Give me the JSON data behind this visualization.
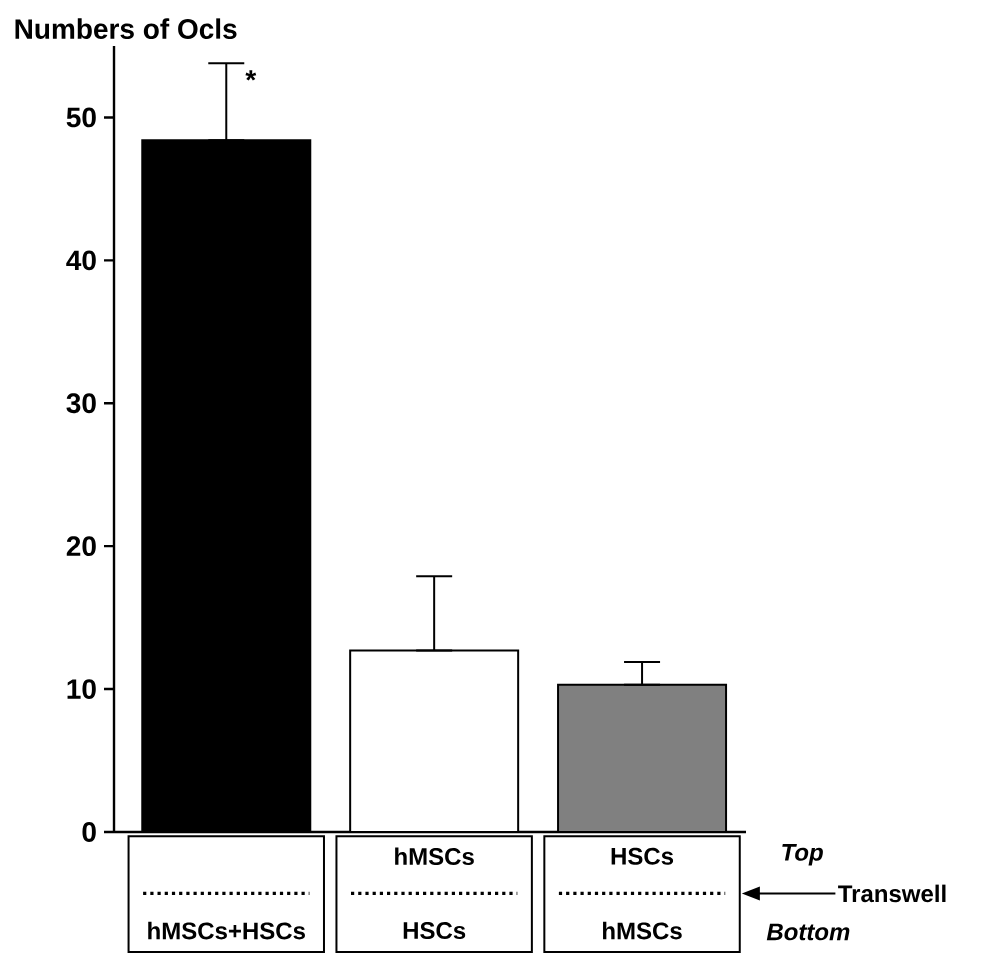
{
  "chart_data": {
    "type": "bar",
    "ylabel": "Numbers of Ocls",
    "categories": [
      "hMSCs+HSCs",
      "HSCs",
      "hMSCs"
    ],
    "values": [
      48.4,
      12.7,
      10.3
    ],
    "errors": [
      [
        48.4,
        53.8
      ],
      [
        12.7,
        17.9
      ],
      [
        10.3,
        11.9
      ]
    ],
    "colors": [
      "#000000",
      "#ffffff",
      "#808080"
    ],
    "ylim": [
      0,
      55
    ],
    "yticks": [
      0,
      10,
      20,
      30,
      40,
      50
    ],
    "annotations": [
      {
        "text": "*",
        "x": "hMSCs+HSCs",
        "y": 53.8
      },
      "hMSCs",
      "HSCs",
      "Top",
      "Bottom",
      "Transwell"
    ]
  }
}
